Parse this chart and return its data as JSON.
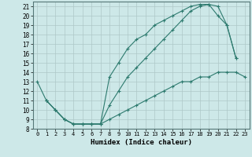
{
  "xlabel": "Humidex (Indice chaleur)",
  "bg_color": "#cde8e8",
  "line_color": "#2d7a6e",
  "grid_color": "#aec8c8",
  "xlim": [
    -0.5,
    23.5
  ],
  "ylim": [
    8,
    21.5
  ],
  "yticks": [
    8,
    9,
    10,
    11,
    12,
    13,
    14,
    15,
    16,
    17,
    18,
    19,
    20,
    21
  ],
  "xticks": [
    0,
    1,
    2,
    3,
    4,
    5,
    6,
    7,
    8,
    9,
    10,
    11,
    12,
    13,
    14,
    15,
    16,
    17,
    18,
    19,
    20,
    21,
    22,
    23
  ],
  "curve1_x": [
    0,
    1,
    2,
    3,
    4,
    5,
    6,
    7,
    8,
    9,
    10,
    11,
    12,
    13,
    14,
    15,
    16,
    17,
    18,
    19,
    20,
    21,
    22
  ],
  "curve1_y": [
    13,
    11,
    10,
    9,
    8.5,
    8.5,
    8.5,
    8.5,
    13.5,
    15,
    16.5,
    17.5,
    18,
    19,
    19.5,
    20,
    20.5,
    21,
    21.2,
    21.2,
    21,
    19,
    15.5
  ],
  "curve2_x": [
    1,
    2,
    3,
    4,
    5,
    6,
    7,
    8,
    9,
    10,
    11,
    12,
    13,
    14,
    15,
    16,
    17,
    18,
    19,
    20,
    21,
    22
  ],
  "curve2_y": [
    11,
    10,
    9,
    8.5,
    8.5,
    8.5,
    8.5,
    10.5,
    12,
    13.5,
    14.5,
    15.5,
    16.5,
    17.5,
    18.5,
    19.5,
    20.5,
    21,
    21.2,
    20,
    19,
    15.5
  ],
  "curve3_x": [
    1,
    2,
    3,
    4,
    5,
    6,
    7,
    8,
    9,
    10,
    11,
    12,
    13,
    14,
    15,
    16,
    17,
    18,
    19,
    20,
    21,
    22,
    23
  ],
  "curve3_y": [
    11,
    10,
    9,
    8.5,
    8.5,
    8.5,
    8.5,
    9,
    9.5,
    10,
    10.5,
    11,
    11.5,
    12,
    12.5,
    13,
    13,
    13.5,
    13.5,
    14,
    14,
    14,
    13.5
  ]
}
